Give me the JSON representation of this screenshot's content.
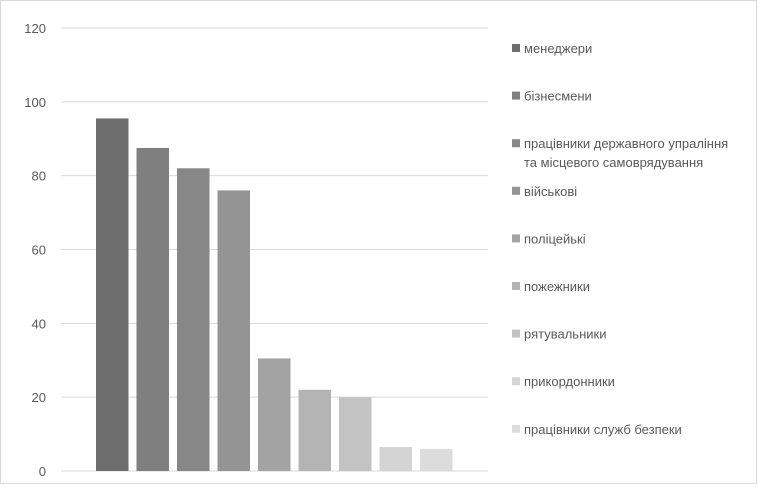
{
  "chart_data": {
    "type": "bar",
    "title": "",
    "xlabel": "",
    "ylabel": "",
    "ylim": [
      0,
      120
    ],
    "y_ticks": [
      "0",
      "20",
      "40",
      "60",
      "80",
      "100",
      "120"
    ],
    "grid": true,
    "legend_position": "right",
    "categories": [
      "менеджери",
      "бізнесмени",
      "працівники державного упраління та місцевого самоврядування",
      "військові",
      "поліцейькі",
      "пожежники",
      "рятувальники",
      "прикордонники",
      "працівники служб безпеки"
    ],
    "values": [
      95.5,
      87.5,
      82,
      76,
      30.5,
      22,
      20,
      6.5,
      6
    ],
    "colors": [
      "#6e6e6e",
      "#7f7f7f",
      "#878787",
      "#949494",
      "#a3a3a3",
      "#b4b4b4",
      "#c3c3c3",
      "#d4d4d4",
      "#dcdcdc"
    ],
    "legend": [
      {
        "lines": [
          "менеджери"
        ]
      },
      {
        "lines": [
          "бізнесмени"
        ]
      },
      {
        "lines": [
          "працівники державного упраління",
          "та місцевого самоврядування"
        ]
      },
      {
        "lines": [
          "військові"
        ]
      },
      {
        "lines": [
          "поліцейькі"
        ]
      },
      {
        "lines": [
          "пожежники"
        ]
      },
      {
        "lines": [
          "рятувальники"
        ]
      },
      {
        "lines": [
          "прикордонники"
        ]
      },
      {
        "lines": [
          "працівники служб безпеки"
        ]
      }
    ]
  }
}
